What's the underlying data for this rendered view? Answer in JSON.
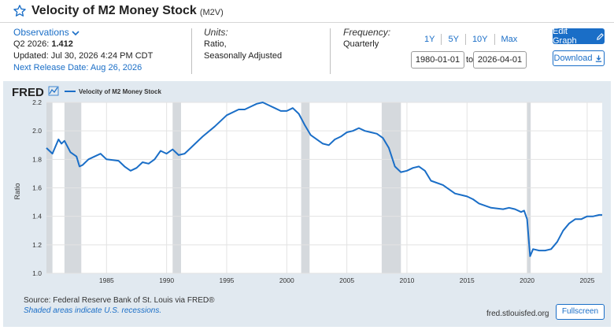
{
  "header": {
    "title": "Velocity of M2 Money Stock",
    "series_code": "(M2V)"
  },
  "observations": {
    "label": "Observations",
    "period": "Q2 2026:",
    "value": "1.412",
    "updated": "Updated: Jul 30, 2026 4:24 PM CDT",
    "next_release": "Next Release Date: Aug 26, 2026"
  },
  "units": {
    "label": "Units:",
    "line1": "Ratio,",
    "line2": "Seasonally Adjusted"
  },
  "frequency": {
    "label": "Frequency:",
    "value": "Quarterly"
  },
  "range_buttons": [
    "1Y",
    "5Y",
    "10Y",
    "Max"
  ],
  "date_range": {
    "start": "1980-01-01",
    "to_label": "to",
    "end": "2026-04-01"
  },
  "buttons": {
    "edit_graph": "Edit Graph",
    "download": "Download",
    "fullscreen": "Fullscreen"
  },
  "footer": {
    "source": "Source: Federal Reserve Bank of St. Louis via FRED®",
    "shaded_note": "Shaded areas indicate U.S. recessions.",
    "fred_url": "fred.stlouisfed.org"
  },
  "colors": {
    "accent": "#1a6ec7",
    "line": "#1a6ec7",
    "chart_bg": "#e1e9f0",
    "recession": "#d5d9dd"
  },
  "chart_data": {
    "type": "line",
    "logo": "FRED",
    "legend": [
      "Velocity of M2 Money Stock"
    ],
    "ylabel": "Ratio",
    "xlim": [
      1980.0,
      2026.25
    ],
    "ylim": [
      1.0,
      2.2
    ],
    "yticks": [
      "1.0",
      "1.2",
      "1.4",
      "1.6",
      "1.8",
      "2.0",
      "2.2"
    ],
    "xticks": [
      "1985",
      "1990",
      "1995",
      "2000",
      "2005",
      "2010",
      "2015",
      "2020",
      "2025"
    ],
    "grid": true,
    "recessions": [
      [
        1980.0,
        1980.5
      ],
      [
        1981.5,
        1982.9
      ],
      [
        1990.5,
        1991.2
      ],
      [
        2001.2,
        2001.9
      ],
      [
        2007.9,
        2009.5
      ],
      [
        2020.0,
        2020.3
      ]
    ],
    "series": [
      {
        "x": [
          1980.0,
          1980.5,
          1981.0,
          1981.25,
          1981.5,
          1981.75,
          1982.0,
          1982.5,
          1982.75,
          1983.0,
          1983.5,
          1984.0,
          1984.5,
          1985.0,
          1986.0,
          1986.5,
          1987.0,
          1987.5,
          1988.0,
          1988.5,
          1989.0,
          1989.5,
          1990.0,
          1990.5,
          1991.0,
          1991.5,
          1992.0,
          1992.5,
          1993.0,
          1994.0,
          1995.0,
          1996.0,
          1996.5,
          1997.0,
          1997.5,
          1998.0,
          1998.5,
          1999.0,
          1999.5,
          2000.0,
          2000.5,
          2001.0,
          2001.5,
          2002.0,
          2003.0,
          2003.5,
          2004.0,
          2004.5,
          2005.0,
          2005.5,
          2006.0,
          2006.5,
          2007.0,
          2007.5,
          2008.0,
          2008.5,
          2009.0,
          2009.5,
          2010.0,
          2010.5,
          2011.0,
          2011.5,
          2012.0,
          2013.0,
          2014.0,
          2014.5,
          2015.0,
          2015.5,
          2016.0,
          2017.0,
          2018.0,
          2018.5,
          2019.0,
          2019.5,
          2019.75,
          2020.0,
          2020.25,
          2020.5,
          2021.0,
          2021.5,
          2022.0,
          2022.5,
          2023.0,
          2023.5,
          2024.0,
          2024.5,
          2025.0,
          2025.5,
          2026.0,
          2026.25
        ],
        "y": [
          1.88,
          1.84,
          1.94,
          1.91,
          1.93,
          1.89,
          1.85,
          1.82,
          1.75,
          1.76,
          1.8,
          1.82,
          1.84,
          1.8,
          1.79,
          1.75,
          1.72,
          1.74,
          1.78,
          1.77,
          1.8,
          1.86,
          1.84,
          1.87,
          1.83,
          1.84,
          1.88,
          1.92,
          1.96,
          2.03,
          2.11,
          2.15,
          2.15,
          2.17,
          2.19,
          2.2,
          2.18,
          2.16,
          2.14,
          2.14,
          2.16,
          2.12,
          2.04,
          1.97,
          1.91,
          1.9,
          1.94,
          1.96,
          1.99,
          2.0,
          2.02,
          2.0,
          1.99,
          1.98,
          1.95,
          1.88,
          1.75,
          1.71,
          1.72,
          1.74,
          1.75,
          1.72,
          1.65,
          1.62,
          1.56,
          1.55,
          1.54,
          1.52,
          1.49,
          1.46,
          1.45,
          1.46,
          1.45,
          1.43,
          1.44,
          1.38,
          1.12,
          1.17,
          1.16,
          1.16,
          1.17,
          1.22,
          1.3,
          1.35,
          1.38,
          1.38,
          1.4,
          1.4,
          1.41,
          1.41
        ]
      }
    ]
  }
}
